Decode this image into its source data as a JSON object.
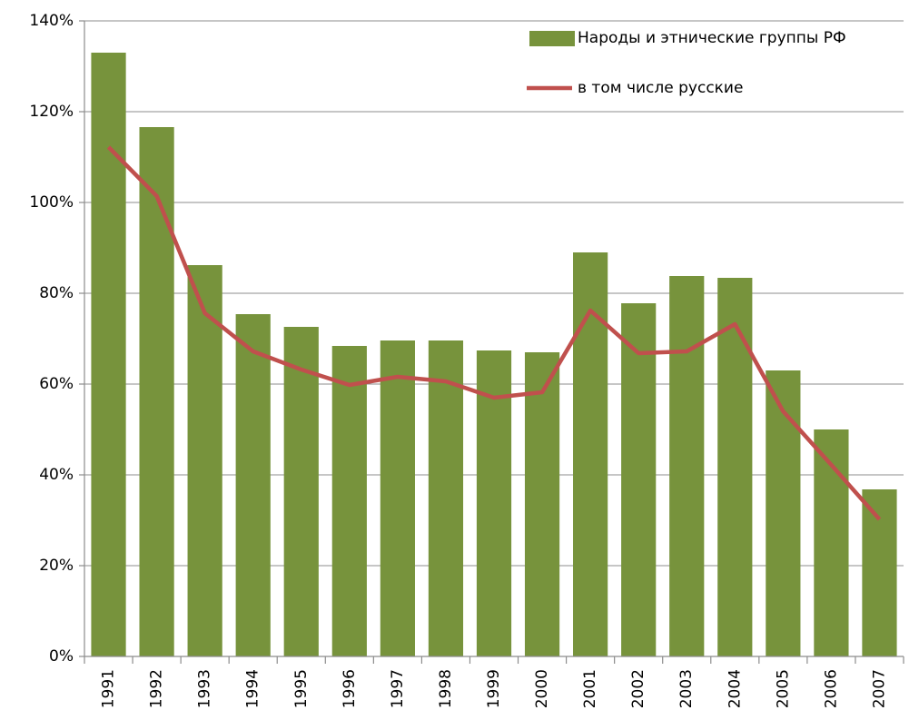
{
  "chart_data": {
    "type": "bar",
    "categories": [
      "1991",
      "1992",
      "1993",
      "1994",
      "1995",
      "1996",
      "1997",
      "1998",
      "1999",
      "2000",
      "2001",
      "2002",
      "2003",
      "2004",
      "2005",
      "2006",
      "2007"
    ],
    "series": [
      {
        "name": "Народы и этнические группы РФ",
        "type": "bar",
        "color": "#77933c",
        "values": [
          133,
          116.6,
          86.2,
          75.4,
          72.6,
          68.4,
          69.6,
          69.6,
          67.4,
          67,
          89,
          77.8,
          83.8,
          83.4,
          63,
          50,
          36.8
        ]
      },
      {
        "name": "в том числе русские",
        "type": "line",
        "color": "#c0504d",
        "values": [
          112.2,
          101.4,
          75.6,
          67.2,
          63.2,
          59.8,
          61.6,
          60.6,
          57,
          58.2,
          76.2,
          66.8,
          67.2,
          73.2,
          54,
          42.2,
          30.2
        ]
      }
    ],
    "ylim": [
      0,
      140
    ],
    "yticks": [
      {
        "value": 0,
        "label": "0%"
      },
      {
        "value": 20,
        "label": "20%"
      },
      {
        "value": 40,
        "label": "40%"
      },
      {
        "value": 60,
        "label": "60%"
      },
      {
        "value": 80,
        "label": "80%"
      },
      {
        "value": 100,
        "label": "100%"
      },
      {
        "value": 120,
        "label": "120%"
      },
      {
        "value": 140,
        "label": "140%"
      }
    ],
    "grid": true,
    "legend": "top-right"
  }
}
